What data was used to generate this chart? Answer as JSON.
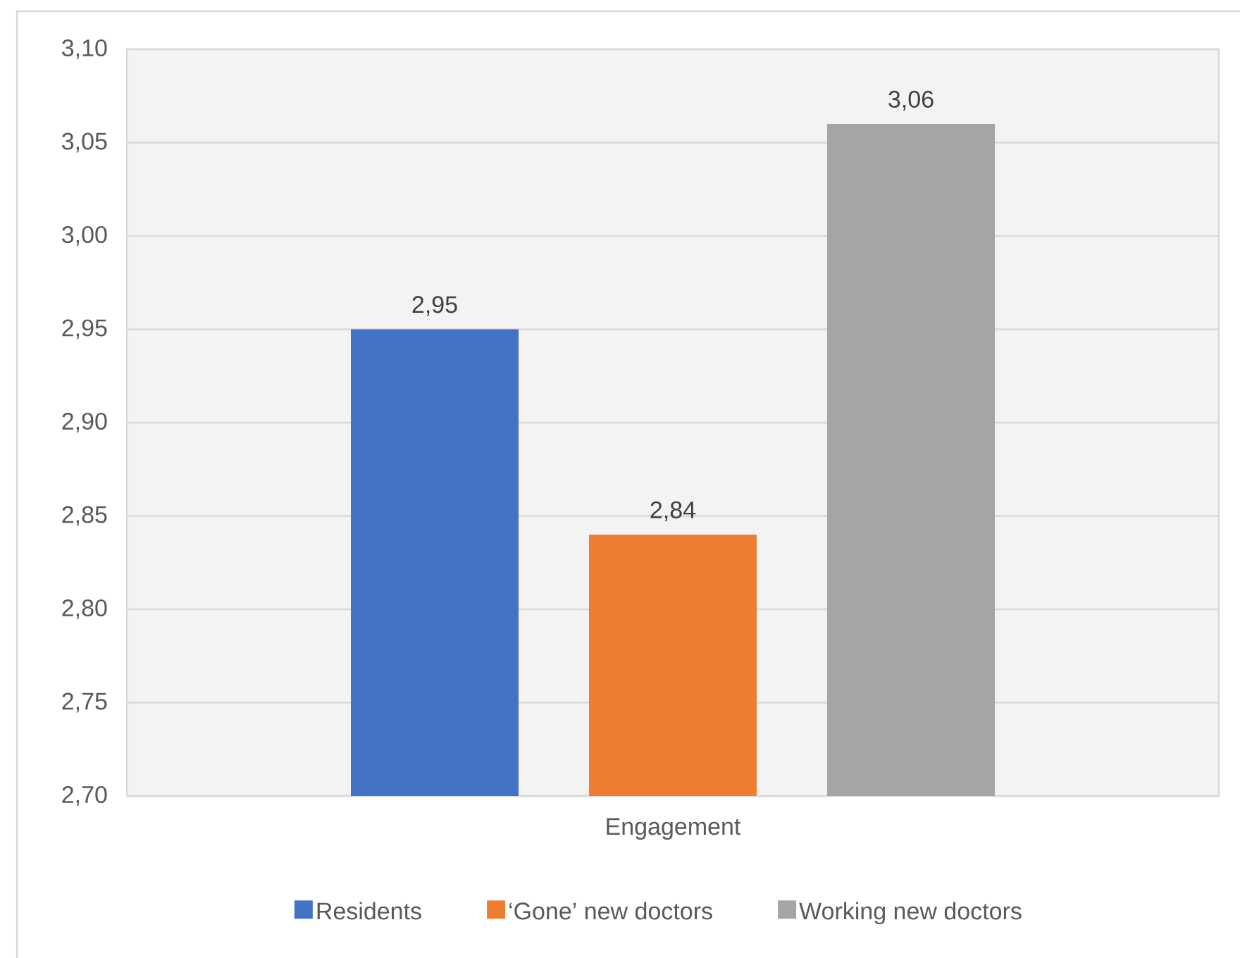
{
  "chart_data": {
    "type": "bar",
    "categories": [
      "Engagement"
    ],
    "series": [
      {
        "name": "Residents",
        "color": "#4472c4",
        "values": [
          2.95
        ],
        "value_labels": [
          "2,95"
        ]
      },
      {
        "name": "‘Gone’ new doctors",
        "color": "#ed7d31",
        "values": [
          2.84
        ],
        "value_labels": [
          "2,84"
        ]
      },
      {
        "name": "Working new doctors",
        "color": "#a5a5a5",
        "values": [
          3.06
        ],
        "value_labels": [
          "3,06"
        ]
      }
    ],
    "ylim": [
      2.7,
      3.1
    ],
    "yticks": [
      {
        "value": 2.7,
        "label": "2,70"
      },
      {
        "value": 2.75,
        "label": "2,75"
      },
      {
        "value": 2.8,
        "label": "2,80"
      },
      {
        "value": 2.85,
        "label": "2,85"
      },
      {
        "value": 2.9,
        "label": "2,90"
      },
      {
        "value": 2.95,
        "label": "2,95"
      },
      {
        "value": 3.0,
        "label": "3,00"
      },
      {
        "value": 3.05,
        "label": "3,05"
      },
      {
        "value": 3.1,
        "label": "3,10"
      }
    ],
    "grid": "y",
    "legend": "bottom"
  }
}
